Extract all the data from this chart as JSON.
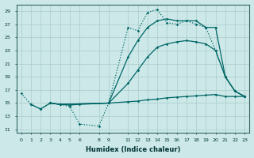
{
  "xlabel": "Humidex (Indice chaleur)",
  "ylabel": "",
  "background_color": "#cce8e8",
  "grid_color": "#aacccc",
  "line_color": "#006666",
  "xlim": [
    -0.5,
    23.5
  ],
  "ylim": [
    10.5,
    30.0
  ],
  "yticks": [
    11,
    13,
    15,
    17,
    19,
    21,
    23,
    25,
    27,
    29
  ],
  "xticks": [
    0,
    1,
    2,
    3,
    4,
    5,
    6,
    8,
    9,
    11,
    12,
    13,
    14,
    15,
    16,
    17,
    18,
    19,
    20,
    21,
    22,
    23
  ],
  "line1_dotted": {
    "x": [
      0,
      1,
      2,
      3,
      4,
      5,
      6,
      8,
      9,
      11,
      12,
      13,
      14,
      15,
      16,
      17,
      18,
      19,
      20,
      21,
      22,
      23
    ],
    "y": [
      16.5,
      14.8,
      14.1,
      15.0,
      14.8,
      14.5,
      11.8,
      11.5,
      15.0,
      26.5,
      26.0,
      28.8,
      29.2,
      27.2,
      27.0,
      27.5,
      27.0,
      26.5,
      23.0,
      19.0,
      16.8,
      16.0
    ]
  },
  "line2_flat": {
    "x": [
      1,
      2,
      3,
      4,
      5,
      6,
      9,
      11,
      12,
      13,
      14,
      15,
      16,
      17,
      18,
      19,
      20,
      21,
      22,
      23
    ],
    "y": [
      14.8,
      14.1,
      15.0,
      14.8,
      14.7,
      14.8,
      15.0,
      15.2,
      15.3,
      15.5,
      15.6,
      15.8,
      15.9,
      16.0,
      16.1,
      16.2,
      16.3,
      16.0,
      16.0,
      16.0
    ]
  },
  "line3_mid": {
    "x": [
      3,
      4,
      9,
      11,
      12,
      13,
      14,
      15,
      16,
      17,
      18,
      19,
      20,
      21,
      22,
      23
    ],
    "y": [
      15.0,
      14.8,
      15.0,
      18.0,
      20.0,
      22.0,
      23.5,
      24.0,
      24.3,
      24.5,
      24.3,
      24.0,
      23.0,
      19.0,
      16.8,
      16.0
    ]
  },
  "line4_upper": {
    "x": [
      3,
      4,
      9,
      11,
      12,
      13,
      14,
      15,
      16,
      17,
      18,
      19,
      20,
      21,
      22,
      23
    ],
    "y": [
      15.0,
      14.8,
      15.0,
      22.0,
      24.5,
      26.5,
      27.5,
      27.8,
      27.5,
      27.5,
      27.5,
      26.5,
      26.5,
      19.0,
      16.8,
      16.0
    ]
  }
}
